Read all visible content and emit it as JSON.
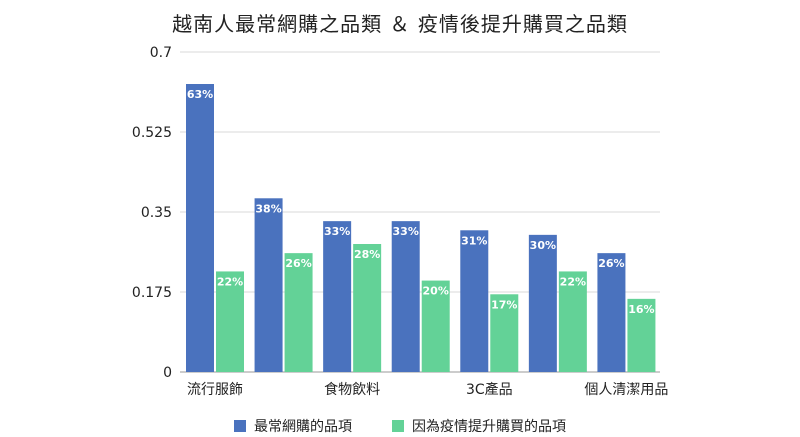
{
  "chart_data": {
    "type": "bar",
    "title": "越南人最常網購之品類 ＆ 疫情後提升購買之品類",
    "categories": [
      "流行服飾",
      "",
      "食物飲料",
      "",
      "3C產品",
      "",
      "個人清潔用品"
    ],
    "series": [
      {
        "name": "最常網購的品項",
        "values": [
          0.63,
          0.38,
          0.33,
          0.33,
          0.31,
          0.3,
          0.26
        ],
        "labels": [
          "63%",
          "38%",
          "33%",
          "33%",
          "31%",
          "30%",
          "26%"
        ],
        "color": "#4a72be"
      },
      {
        "name": "因為疫情提升購買的品項",
        "values": [
          0.22,
          0.26,
          0.28,
          0.2,
          0.17,
          0.22,
          0.16
        ],
        "labels": [
          "22%",
          "26%",
          "28%",
          "20%",
          "17%",
          "22%",
          "16%"
        ],
        "color": "#63d297"
      }
    ],
    "yticks": [
      "0",
      "0.175",
      "0.35",
      "0.525",
      "0.7"
    ],
    "ylim": [
      0,
      0.7
    ],
    "grid": true,
    "legend_position": "bottom"
  }
}
